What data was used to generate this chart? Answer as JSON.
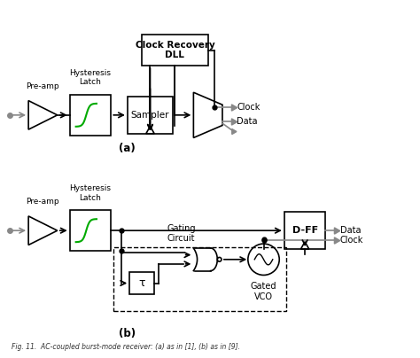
{
  "fig_width": 4.74,
  "fig_height": 4.04,
  "bg_color": "#ffffff",
  "line_color": "#000000",
  "gray_color": "#888888",
  "green_color": "#00aa00",
  "label_a": "(a)",
  "label_b": "(b)",
  "caption": "Fig. 11.  AC-coupled burst-mode receiver: (a) as in [1], (b) as in [9].",
  "clock_recovery_text": "Clock Recovery\nDLL",
  "sampler_text": "Sampler",
  "pre_amp_text": "Pre-amp",
  "hyst_latch_text": "Hysteresis\nLatch",
  "dff_text": "D-FF",
  "gating_circuit_text": "Gating\nCircuit",
  "tau_text": "τ",
  "gated_vco_text": "Gated\nVCO",
  "clock_label": "Clock",
  "data_label": "Data"
}
